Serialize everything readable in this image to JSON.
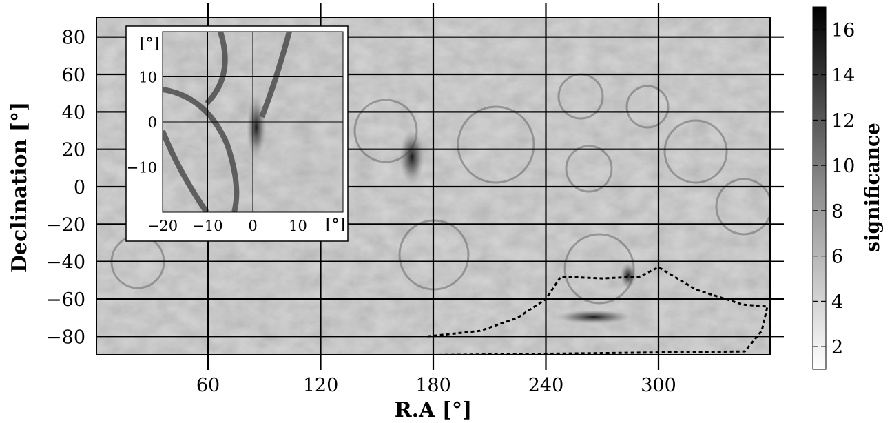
{
  "chart_data": {
    "type": "heatmap",
    "xlabel": "R.A [°]",
    "ylabel": "Declination [°]",
    "xlim": [
      0,
      360
    ],
    "ylim": [
      -90,
      90
    ],
    "x_ticks": [
      "60",
      "120",
      "180",
      "240",
      "300"
    ],
    "y_ticks": [
      "80",
      "60",
      "40",
      "20",
      "0",
      "−20",
      "−40",
      "−60",
      "−80"
    ],
    "grid": true,
    "colorbar": {
      "label": "significance",
      "range": [
        1,
        17
      ],
      "ticks": [
        "16",
        "14",
        "12",
        "10",
        "8",
        "6",
        "4",
        "2"
      ],
      "colormap": "gray-reversed"
    },
    "exposure_boundary": {
      "style": "dashed",
      "points": [
        [
          177,
          -80
        ],
        [
          205,
          -77
        ],
        [
          225,
          -70
        ],
        [
          240,
          -60
        ],
        [
          248,
          -48
        ],
        [
          270,
          -49
        ],
        [
          290,
          -48
        ],
        [
          300,
          -43
        ],
        [
          320,
          -55
        ],
        [
          345,
          -63
        ],
        [
          358,
          -64
        ],
        [
          355,
          -77
        ],
        [
          346,
          -88
        ],
        [
          180,
          -90
        ]
      ]
    },
    "inset": {
      "xlim": [
        -20,
        20
      ],
      "ylim": [
        -20,
        20
      ],
      "x_ticks": [
        "−20",
        "−10",
        "0",
        "10"
      ],
      "y_ticks": [
        "10",
        "0",
        "−10"
      ],
      "unit_label": "[°]",
      "grid": true
    }
  }
}
